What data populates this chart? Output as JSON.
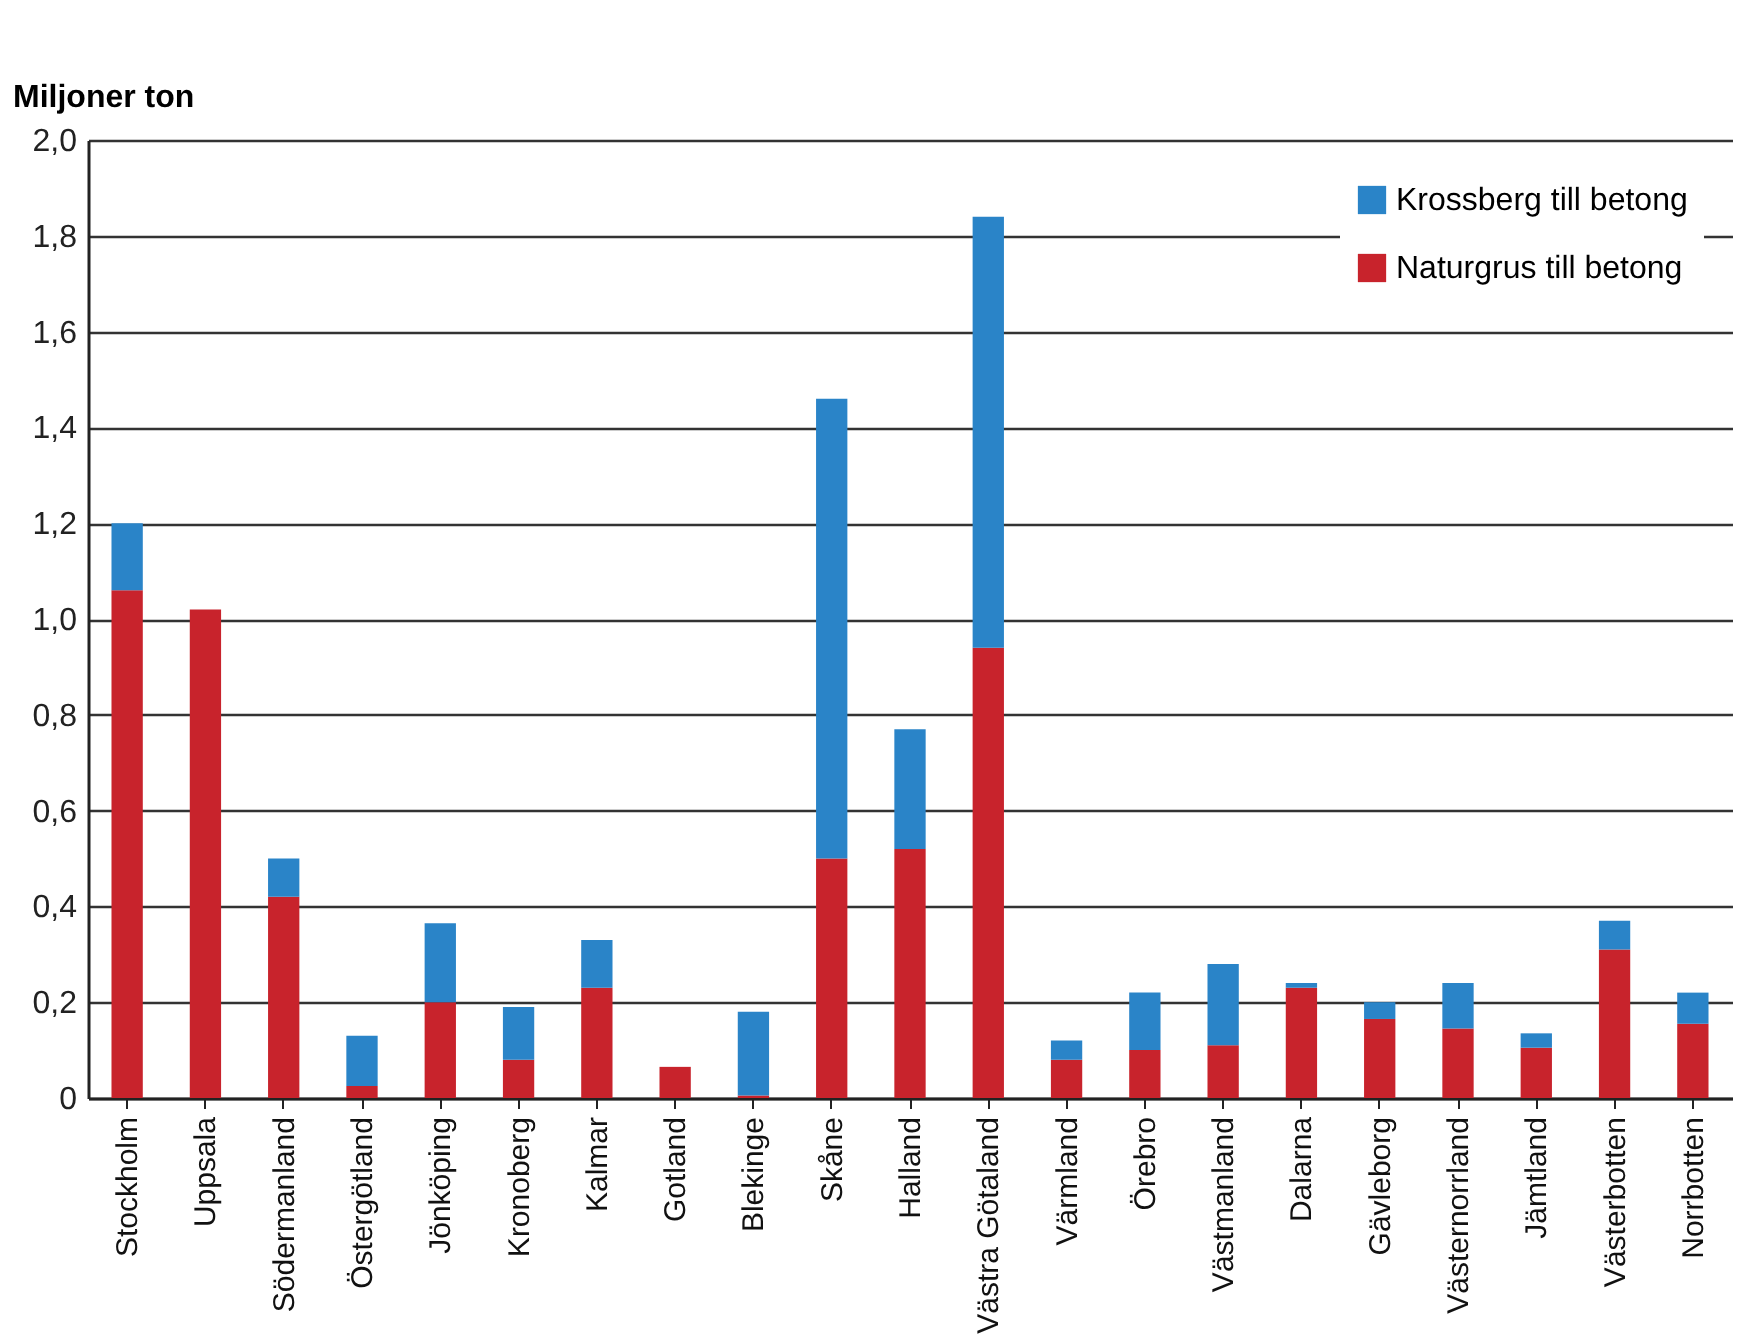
{
  "chart_data": {
    "type": "bar",
    "stacked": true,
    "ylabel": "Miljoner ton",
    "categories": [
      "Stockholm",
      "Uppsala",
      "Södermanland",
      "Östergötland",
      "Jönköping",
      "Kronoberg",
      "Kalmar",
      "Gotland",
      "Blekinge",
      "Skåne",
      "Halland",
      "Västra Götaland",
      "Värmland",
      "Örebro",
      "Västmanland",
      "Dalarna",
      "Gävleborg",
      "Västernorrland",
      "Jämtland",
      "Västerbotten",
      "Norrbotten"
    ],
    "series": [
      {
        "name": "Naturgrus till betong",
        "color": "#c8232c",
        "values": [
          1.06,
          1.02,
          0.42,
          0.025,
          0.2,
          0.08,
          0.23,
          0.065,
          0.005,
          0.5,
          0.52,
          0.94,
          0.08,
          0.1,
          0.11,
          0.23,
          0.165,
          0.145,
          0.105,
          0.31,
          0.155
        ]
      },
      {
        "name": "Krossberg till betong",
        "color": "#2a84c8",
        "values": [
          0.14,
          0,
          0.08,
          0.105,
          0.165,
          0.11,
          0.1,
          0,
          0.175,
          0.96,
          0.25,
          0.9,
          0.04,
          0.12,
          0.17,
          0.01,
          0.035,
          0.095,
          0.03,
          0.06,
          0.065
        ]
      }
    ],
    "ylim": [
      0,
      2
    ],
    "yticks": [
      {
        "value": 0,
        "label": "0"
      },
      {
        "value": 0.2,
        "label": "0,2"
      },
      {
        "value": 0.4,
        "label": "0,4"
      },
      {
        "value": 0.6,
        "label": "0,6"
      },
      {
        "value": 0.8,
        "label": "0,8"
      },
      {
        "value": 1,
        "label": "1,0"
      },
      {
        "value": 1.2,
        "label": "1,2"
      },
      {
        "value": 1.4,
        "label": "1,4"
      },
      {
        "value": 1.6,
        "label": "1,6"
      },
      {
        "value": 1.8,
        "label": "1,8"
      },
      {
        "value": 2,
        "label": "2,0"
      }
    ],
    "grid": "y",
    "legend": "top right"
  }
}
